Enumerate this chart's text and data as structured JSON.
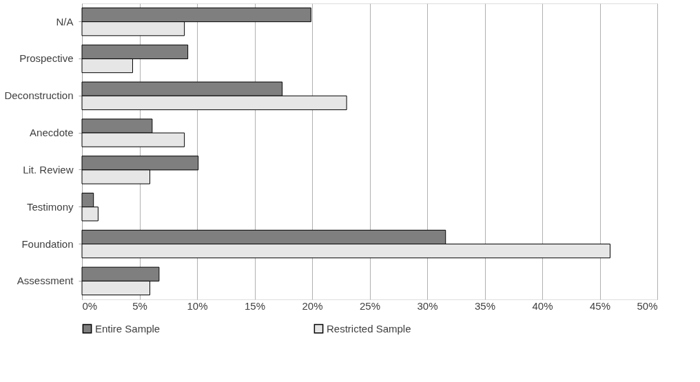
{
  "chart_data": {
    "type": "bar",
    "orientation": "horizontal",
    "categories": [
      "N/A",
      "Prospective",
      "Deconstruction",
      "Anecdote",
      "Lit. Review",
      "Testimony",
      "Foundation",
      "Assessment"
    ],
    "series": [
      {
        "name": "Entire Sample",
        "color": "#7f7f7f",
        "values": [
          19.9,
          9.2,
          17.4,
          6.1,
          10.1,
          1.0,
          31.6,
          6.7
        ]
      },
      {
        "name": "Restricted Sample",
        "color": "#e6e6e6",
        "values": [
          8.9,
          4.4,
          23.0,
          8.9,
          5.9,
          1.4,
          45.9,
          5.9
        ]
      }
    ],
    "xlim": [
      0,
      50
    ],
    "xticks": [
      {
        "value": 0,
        "label": "0%"
      },
      {
        "value": 5,
        "label": "5%"
      },
      {
        "value": 10,
        "label": "10%"
      },
      {
        "value": 15,
        "label": "15%"
      },
      {
        "value": 20,
        "label": "20%"
      },
      {
        "value": 25,
        "label": "25%"
      },
      {
        "value": 30,
        "label": "30%"
      },
      {
        "value": 35,
        "label": "35%"
      },
      {
        "value": 40,
        "label": "40%"
      },
      {
        "value": 45,
        "label": "45%"
      },
      {
        "value": 50,
        "label": "50%"
      }
    ],
    "grid": "x",
    "legend": "bottom"
  }
}
